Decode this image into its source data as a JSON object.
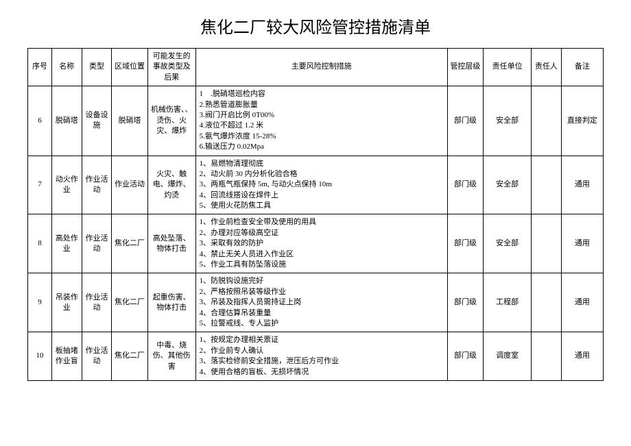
{
  "title": "焦化二厂较大风险管控措施清单",
  "headers": {
    "seq": "序号",
    "name": "名称",
    "type": "类型",
    "area": "区域位置",
    "event": "可能发生的事故类型及后果",
    "measure": "主要风险控制措施",
    "level": "管控层级",
    "unit": "责任单位",
    "person": "责任人",
    "remark": "备注"
  },
  "rows": [
    {
      "seq": "6",
      "name": "脱硝塔",
      "type": "设备设施",
      "area": "脱硝塔",
      "event": "机械伤害、、烫伤、火灾、爆炸",
      "measures": [
        "1　.脱硝塔巡检内容",
        "2.熟悉管道膨胀量",
        "3.阀门开启比例 0T00%",
        "4.液位不超过 1.2 米",
        "5.氨气爆炸浓度 15-28%",
        "6.输送压力 0.02Mpa"
      ],
      "level": "部门级",
      "unit": "安全部",
      "person": "",
      "remark": "直接判定"
    },
    {
      "seq": "7",
      "name": "动火作业",
      "type": "作业活动",
      "area": "作业活动",
      "event": "火灾、触电、爆炸、灼烫",
      "measures": [
        "1、易燃物清理彻底",
        "2、动火前 30 内分析化验合格",
        "3、两瓶气瓶保持 5m, 与动火点保持 10m",
        "4、回流线搭设在焊件上",
        "5、使用火花防焦工具"
      ],
      "level": "部门级",
      "unit": "安全部",
      "person": "",
      "remark": "通用"
    },
    {
      "seq": "8",
      "name": "高处作业",
      "type": "作业活动",
      "area": "焦化二厂",
      "event": "高处坠落、物体打击",
      "measures": [
        "1、作业前检查安全带及使用的用具",
        "2、办理对应等级高空证",
        "3、采取有效的防护",
        "4、禁止无关人员进入作业区",
        "5、作业工具有防坠落设施"
      ],
      "level": "部门级",
      "unit": "安全部",
      "person": "",
      "remark": "通用"
    },
    {
      "seq": "9",
      "name": "吊装作业",
      "type": "作业活动",
      "area": "焦化二厂",
      "event": "起重伤害、物体打击",
      "measures": [
        "1、防脱钩设施完好",
        "2、严格按照吊装等级作业",
        "3、吊装及指挥人员需持证上岗",
        "4、合理估算吊装重量",
        "5、拉警戒线、专人监护"
      ],
      "level": "部门级",
      "unit": "工程部",
      "person": "",
      "remark": "通用"
    },
    {
      "seq": "10",
      "name": "板抽堵作业盲",
      "type": "作业活动",
      "area": "焦化二厂",
      "event": "中毒、烧伤、其他伤害",
      "measures": [
        "1、按规定办理相关票证",
        "2、作业前专人确认",
        "3、落实检修前安全措施，泄压后方可作业",
        "4、使用合格的盲板、无损坏情况"
      ],
      "level": "部门级",
      "unit": "调度室",
      "person": "",
      "remark": "通用"
    }
  ]
}
